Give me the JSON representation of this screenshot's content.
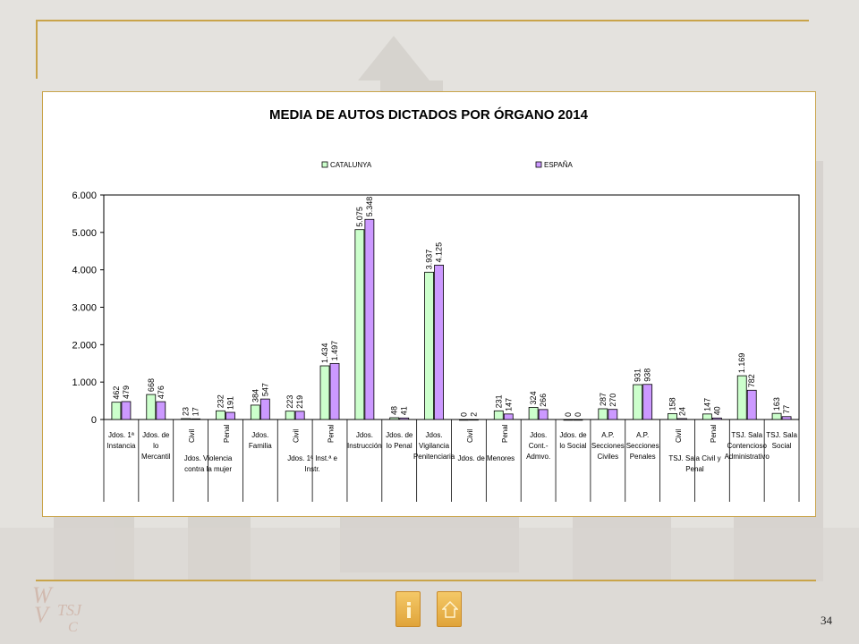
{
  "page": {
    "number": "34"
  },
  "nav": {
    "back_icon": "info-icon",
    "home_icon": "home-icon"
  },
  "colors": {
    "cat": "#ccffcc",
    "esp": "#cc99ff",
    "gold": "#c9a44a"
  },
  "logo_text": "TSJ C",
  "chart_data": {
    "type": "bar",
    "title": "MEDIA DE AUTOS DICTADOS POR ÓRGANO 2014",
    "legend_position": "top",
    "grid": false,
    "ylim": [
      0,
      6000
    ],
    "yticks": [
      "0",
      "1.000",
      "2.000",
      "3.000",
      "4.000",
      "5.000",
      "6.000"
    ],
    "ytick_values": [
      0,
      1000,
      2000,
      3000,
      4000,
      5000,
      6000
    ],
    "series": [
      {
        "name": "CATALUNYA",
        "color": "#ccffcc",
        "values": [
          462,
          668,
          23,
          232,
          384,
          223,
          1434,
          5075,
          48,
          3937,
          0,
          231,
          324,
          0,
          287,
          931,
          158,
          147,
          1169,
          163
        ],
        "labels": [
          "462",
          "668",
          "23",
          "232",
          "384",
          "223",
          "1.434",
          "5.075",
          "48",
          "3.937",
          "0",
          "231",
          "324",
          "0",
          "287",
          "931",
          "158",
          "147",
          "1.169",
          "163"
        ]
      },
      {
        "name": "ESPAÑA",
        "color": "#cc99ff",
        "values": [
          479,
          476,
          17,
          191,
          547,
          219,
          1497,
          5348,
          41,
          4125,
          2,
          147,
          266,
          0,
          270,
          938,
          24,
          40,
          782,
          77
        ],
        "labels": [
          "479",
          "476",
          "17",
          "191",
          "547",
          "219",
          "1.497",
          "5.348",
          "41",
          "4.125",
          "2",
          "147",
          "266",
          "0",
          "270",
          "938",
          "24",
          "40",
          "782",
          "77"
        ]
      }
    ],
    "categories": [
      {
        "lines": [
          "Jdos. 1ª",
          "Instancia"
        ]
      },
      {
        "lines": [
          "Jdos. de",
          "lo",
          "Mercantil"
        ]
      },
      {
        "lines": [
          "Civil"
        ],
        "rotated": true,
        "group": "Jdos. Violencia contra la mujer"
      },
      {
        "lines": [
          "Penal"
        ],
        "rotated": true
      },
      {
        "lines": [
          "Jdos.",
          "Familia"
        ]
      },
      {
        "lines": [
          "Civil"
        ],
        "rotated": true,
        "group": "Jdos. 1ª Inst.ª e Instr."
      },
      {
        "lines": [
          "Penal"
        ],
        "rotated": true
      },
      {
        "lines": [
          "Jdos.",
          "Instrucción"
        ]
      },
      {
        "lines": [
          "Jdos. de",
          "lo Penal"
        ]
      },
      {
        "lines": [
          "Jdos.",
          "Vigilancia",
          "Penitenciaria"
        ]
      },
      {
        "lines": [
          "Civil"
        ],
        "rotated": true,
        "group": "Jdos. de Menores"
      },
      {
        "lines": [
          "Penal"
        ],
        "rotated": true
      },
      {
        "lines": [
          "Jdos.",
          "Cont.-",
          "Admvo."
        ]
      },
      {
        "lines": [
          "Jdos. de",
          "lo Social"
        ]
      },
      {
        "lines": [
          "A.P.",
          "Secciones",
          "Civiles"
        ]
      },
      {
        "lines": [
          "A.P.",
          "Secciones",
          "Penales"
        ]
      },
      {
        "lines": [
          "Civil"
        ],
        "rotated": true,
        "group": "TSJ. Sala Civil y Penal"
      },
      {
        "lines": [
          "Penal"
        ],
        "rotated": true
      },
      {
        "lines": [
          "TSJ. Sala",
          "Contencioso",
          "Administrativo"
        ]
      },
      {
        "lines": [
          "TSJ. Sala",
          "Social"
        ]
      }
    ],
    "groups": [
      {
        "label_lines": [
          "Jdos. Violencia",
          "contra la mujer"
        ]
      },
      {
        "label_lines": [
          "Jdos. 1ª Inst.ª e",
          "Instr."
        ]
      },
      {
        "label_lines": [
          "Jdos. de Menores"
        ]
      },
      {
        "label_lines": [
          "TSJ. Sala Civil y",
          "Penal"
        ]
      }
    ]
  }
}
